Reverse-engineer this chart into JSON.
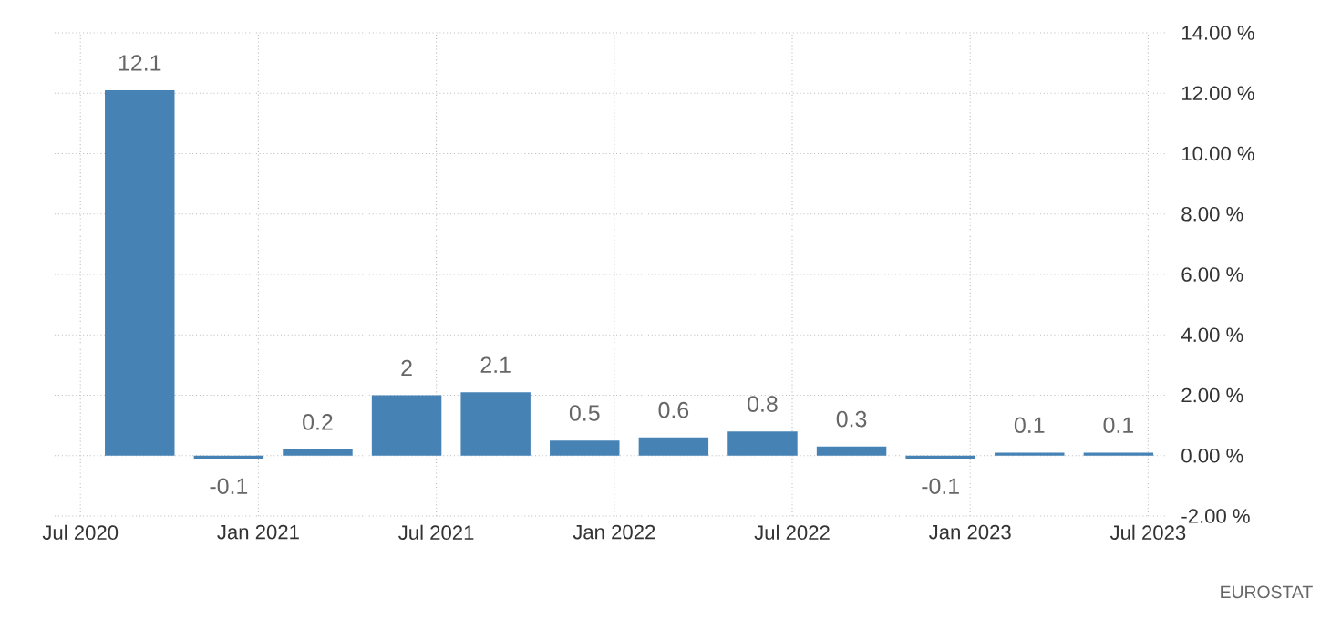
{
  "chart_data": {
    "type": "bar",
    "color": "#4682b4",
    "data_labels": true,
    "grid": true,
    "x": [
      "2020-09",
      "2020-12",
      "2021-03",
      "2021-06",
      "2021-09",
      "2021-12",
      "2022-03",
      "2022-06",
      "2022-09",
      "2022-12",
      "2023-03",
      "2023-06"
    ],
    "values": [
      12.1,
      -0.1,
      0.2,
      2,
      2.1,
      0.5,
      0.6,
      0.8,
      0.3,
      -0.1,
      0.1,
      0.1
    ],
    "xlim": [
      "2020-06-05",
      "2023-07-20"
    ],
    "xticks": [
      {
        "value": "2020-07",
        "label": "Jul 2020"
      },
      {
        "value": "2021-01",
        "label": "Jan 2021"
      },
      {
        "value": "2021-07",
        "label": "Jul 2021"
      },
      {
        "value": "2022-01",
        "label": "Jan 2022"
      },
      {
        "value": "2022-07",
        "label": "Jul 2022"
      },
      {
        "value": "2023-01",
        "label": "Jan 2023"
      },
      {
        "value": "2023-07",
        "label": "Jul 2023"
      }
    ],
    "ylim": [
      -2,
      14
    ],
    "yticks": [
      {
        "value": -2,
        "label": "-2.00 %"
      },
      {
        "value": 0,
        "label": "0.00 %"
      },
      {
        "value": 2,
        "label": "2.00 %"
      },
      {
        "value": 4,
        "label": "4.00 %"
      },
      {
        "value": 6,
        "label": "6.00 %"
      },
      {
        "value": 8,
        "label": "8.00 %"
      },
      {
        "value": 10,
        "label": "10.00 %"
      },
      {
        "value": 12,
        "label": "12.00 %"
      },
      {
        "value": 14,
        "label": "14.00 %"
      }
    ],
    "annotations": [
      "EUROSTAT"
    ]
  }
}
